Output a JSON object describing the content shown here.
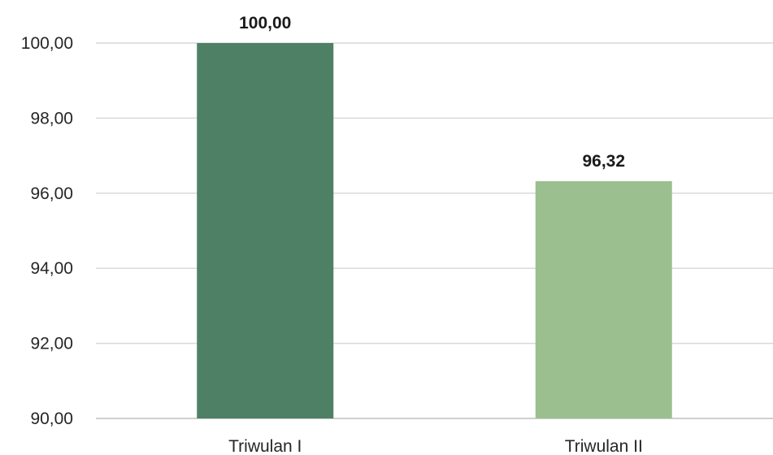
{
  "chart_data": {
    "type": "bar",
    "categories": [
      "Triwulan I",
      "Triwulan II"
    ],
    "values": [
      100.0,
      96.32
    ],
    "data_labels": [
      "100,00",
      "96,32"
    ],
    "ylim": [
      90,
      100
    ],
    "y_ticks": [
      90,
      92,
      94,
      96,
      98,
      100
    ],
    "y_tick_labels": [
      "90,00",
      "92,00",
      "94,00",
      "96,00",
      "98,00",
      "100,00"
    ],
    "bar_colors": [
      "#4e8065",
      "#9bbf8e"
    ],
    "grid": true,
    "legend": "none",
    "title": "",
    "xlabel": "",
    "ylabel": ""
  }
}
